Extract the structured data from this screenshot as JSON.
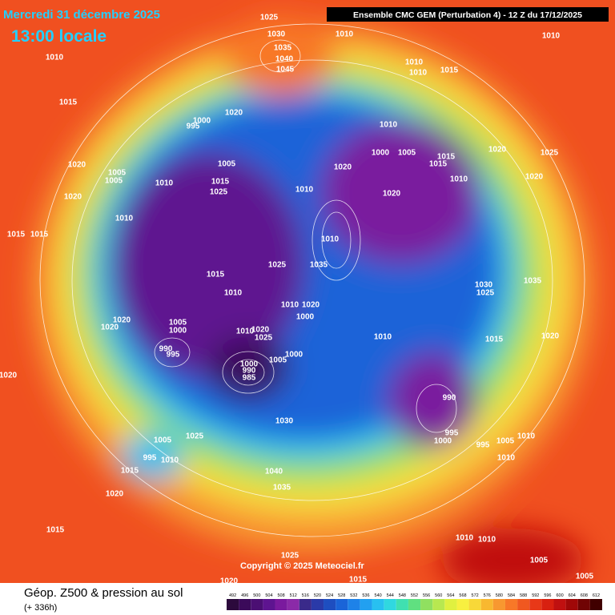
{
  "header": {
    "date": "Mercredi 31 décembre 2025",
    "time": "13:00 locale",
    "run": "Ensemble CMC GEM  (Perturbation 4)  -  12 Z du 17/12/2025"
  },
  "footer": {
    "title": "Géop. Z500 & pression au sol",
    "lead": "(+ 336h)"
  },
  "copyright": "Copyright © 2025 Meteociel.fr",
  "colorbar": {
    "values": [
      492,
      496,
      500,
      504,
      508,
      512,
      516,
      520,
      524,
      528,
      532,
      536,
      540,
      544,
      548,
      552,
      556,
      560,
      564,
      568,
      572,
      576,
      580,
      584,
      588,
      592,
      596,
      600,
      604,
      608,
      612
    ],
    "colors": [
      "#2c0a3c",
      "#3b0a5a",
      "#4b0f73",
      "#5e1490",
      "#7a1a9e",
      "#8b2aa8",
      "#3a2a8a",
      "#2a3aa8",
      "#1e4ec0",
      "#1a64d8",
      "#1e82e8",
      "#22a0f0",
      "#28c0f0",
      "#30d8e0",
      "#40e0b0",
      "#60e080",
      "#90e060",
      "#b8e850",
      "#e0f040",
      "#f8f040",
      "#f8d838",
      "#f8b830",
      "#f89830",
      "#f87828",
      "#f05820",
      "#e83818",
      "#d82010",
      "#c01010",
      "#a00808",
      "#700404",
      "#400000"
    ]
  },
  "isobar_labels": [
    "1025",
    "1030",
    "1035",
    "1040",
    "1045",
    "1010",
    "1010",
    "1010",
    "1010",
    "1010",
    "1015",
    "1015",
    "1020",
    "1000",
    "995",
    "1010",
    "1000",
    "1005",
    "1015",
    "1015",
    "1020",
    "1025",
    "1020",
    "1005",
    "1005",
    "1005",
    "1020",
    "1010",
    "1015",
    "1025",
    "1010",
    "1010",
    "1020",
    "1020",
    "1020",
    "1010",
    "1015",
    "1015",
    "1010",
    "1025",
    "1035",
    "1035",
    "1015",
    "1010",
    "1030",
    "1025",
    "1010",
    "1020",
    "1000",
    "1005",
    "1000",
    "1020",
    "1020",
    "1010",
    "1020",
    "1025",
    "1010",
    "1015",
    "1020",
    "990",
    "995",
    "1000",
    "1005",
    "1000",
    "990",
    "985",
    "1020",
    "990",
    "995",
    "1000",
    "995",
    "1005",
    "1010",
    "1010",
    "1030",
    "1005",
    "1025",
    "995",
    "1010",
    "1015",
    "1040",
    "1035",
    "1020",
    "1015",
    "1010",
    "1010",
    "1005",
    "1005",
    "1025",
    "1020",
    "1015"
  ]
}
